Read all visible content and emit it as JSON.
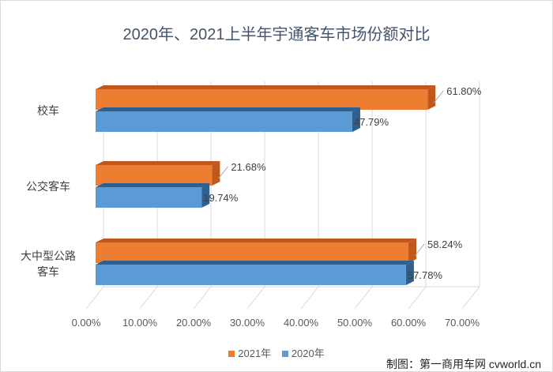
{
  "chart_data": {
    "type": "bar",
    "orientation": "horizontal",
    "style": "3d",
    "title": "2020年、2021上半年宇通客车市场份额对比",
    "categories": [
      "校车",
      "公交客车",
      "大中型公路客车"
    ],
    "category_lines": [
      [
        "校车"
      ],
      [
        "公交客车"
      ],
      [
        "大中型公路",
        "客车"
      ]
    ],
    "series": [
      {
        "name": "2021年",
        "color": "#ed7d31",
        "side_color": "#c0581c",
        "values": [
          61.8,
          21.68,
          58.24
        ],
        "labels": [
          "61.80%",
          "21.68%",
          "58.24%"
        ]
      },
      {
        "name": "2020年",
        "color": "#5b9bd5",
        "side_color": "#2f5f8e",
        "values": [
          47.79,
          19.74,
          57.78
        ],
        "labels": [
          "47.79%",
          "19.74%",
          "57.78%"
        ]
      }
    ],
    "xlim": [
      0,
      70
    ],
    "xticks": [
      "0.00%",
      "10.00%",
      "20.00%",
      "30.00%",
      "40.00%",
      "50.00%",
      "60.00%",
      "70.00%"
    ],
    "grid": true,
    "legend_position": "bottom"
  },
  "credit": "制图：第一商用车网 cvworld.cn"
}
